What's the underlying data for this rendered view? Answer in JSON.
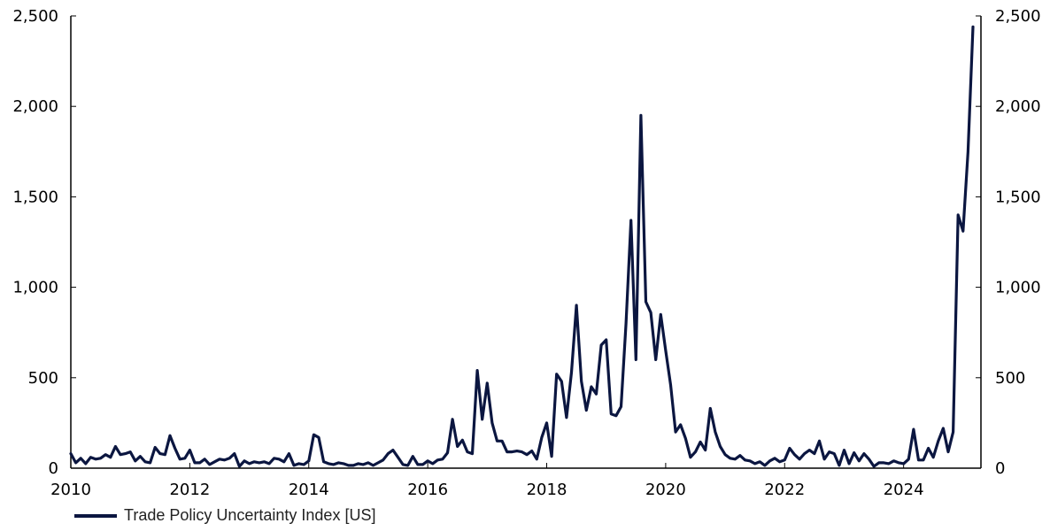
{
  "chart_data": {
    "type": "line",
    "title": "",
    "xlabel": "",
    "ylabel": "",
    "xlim": [
      2010,
      2025.3
    ],
    "ylim": [
      0,
      2500
    ],
    "grid": false,
    "legend_position": "bottom-left",
    "x_ticks": [
      "2010",
      "2012",
      "2014",
      "2016",
      "2018",
      "2020",
      "2022",
      "2024"
    ],
    "y_ticks_left": [
      "0",
      "500",
      "1,000",
      "1,500",
      "2,000",
      "2,500"
    ],
    "y_ticks_right": [
      "0",
      "500",
      "1,000",
      "1,500",
      "2,000",
      "2,500"
    ],
    "color": "#0b1640",
    "series": [
      {
        "name": "Trade Policy Uncertainty Index [US]",
        "values": [
          80,
          30,
          55,
          25,
          60,
          50,
          55,
          75,
          60,
          120,
          75,
          80,
          90,
          40,
          65,
          35,
          30,
          115,
          80,
          75,
          180,
          110,
          50,
          55,
          100,
          30,
          30,
          50,
          20,
          35,
          50,
          45,
          55,
          80,
          10,
          40,
          25,
          35,
          30,
          35,
          25,
          55,
          50,
          35,
          80,
          15,
          25,
          20,
          40,
          185,
          170,
          35,
          25,
          20,
          30,
          25,
          15,
          15,
          25,
          20,
          30,
          15,
          30,
          45,
          80,
          100,
          60,
          20,
          15,
          65,
          20,
          20,
          40,
          25,
          45,
          50,
          85,
          270,
          120,
          155,
          90,
          80,
          540,
          270,
          470,
          250,
          150,
          150,
          90,
          90,
          95,
          90,
          75,
          95,
          50,
          170,
          250,
          65,
          520,
          480,
          280,
          530,
          900,
          480,
          320,
          450,
          410,
          680,
          710,
          300,
          290,
          340,
          800,
          1370,
          600,
          1950,
          920,
          860,
          600,
          850,
          650,
          460,
          200,
          240,
          165,
          60,
          90,
          145,
          100,
          330,
          200,
          120,
          75,
          55,
          50,
          70,
          45,
          40,
          25,
          35,
          15,
          40,
          55,
          35,
          45,
          110,
          75,
          50,
          80,
          100,
          80,
          150,
          50,
          90,
          80,
          15,
          100,
          25,
          85,
          40,
          80,
          50,
          10,
          30,
          30,
          25,
          40,
          30,
          25,
          50,
          215,
          45,
          45,
          110,
          60,
          150,
          220,
          90,
          200,
          1400,
          1310,
          1750,
          2440
        ]
      }
    ],
    "x_start": 2010.0,
    "x_step": 0.0833333
  },
  "legend": {
    "label": "Trade Policy Uncertainty Index [US]"
  }
}
